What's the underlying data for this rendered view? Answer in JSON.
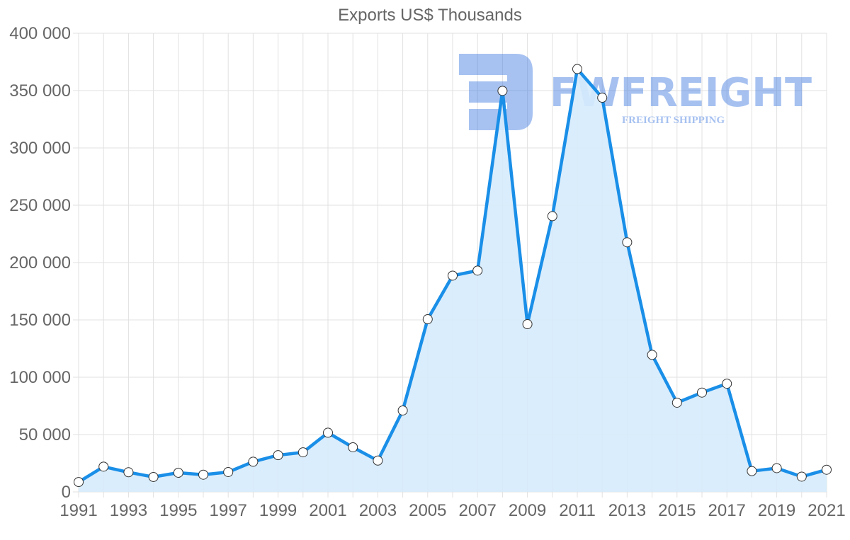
{
  "chart_data": {
    "type": "line",
    "title": "Exports US$ Thousands",
    "xlabel": "",
    "ylabel": "",
    "ylim": [
      0,
      400000
    ],
    "yticks": [
      "0",
      "50 000",
      "100 000",
      "150 000",
      "200 000",
      "250 000",
      "300 000",
      "350 000",
      "400 000"
    ],
    "xticks": [
      "1991",
      "1993",
      "1995",
      "1997",
      "1999",
      "2001",
      "2003",
      "2005",
      "2007",
      "2009",
      "2011",
      "2013",
      "2015",
      "2017",
      "2019",
      "2021"
    ],
    "grid": true,
    "legend": null,
    "fill": true,
    "x": [
      1991,
      1992,
      1993,
      1994,
      1995,
      1996,
      1997,
      1998,
      1999,
      2000,
      2001,
      2002,
      2003,
      2004,
      2005,
      2006,
      2007,
      2008,
      2009,
      2010,
      2011,
      2012,
      2013,
      2014,
      2015,
      2016,
      2017,
      2018,
      2019,
      2020,
      2021
    ],
    "series": [
      {
        "name": "Exports US$ Thousands",
        "values": [
          8600,
          22000,
          17100,
          13000,
          16700,
          15000,
          17300,
          26300,
          32000,
          34500,
          51600,
          38900,
          27300,
          71000,
          150600,
          188600,
          193000,
          349800,
          146300,
          240500,
          368800,
          343800,
          217700,
          119500,
          77800,
          86600,
          94400,
          18100,
          20700,
          13300,
          19300
        ]
      }
    ]
  },
  "colors": {
    "line": "#1a8fe8",
    "fill": "#d6ebfc",
    "point_fill": "#ffffff",
    "point_stroke": "#333333",
    "grid": "#e1e1e1",
    "text": "#666666"
  },
  "watermark": {
    "brand": "FWFREIGHT",
    "tagline": "FREIGHT SHIPPING"
  }
}
